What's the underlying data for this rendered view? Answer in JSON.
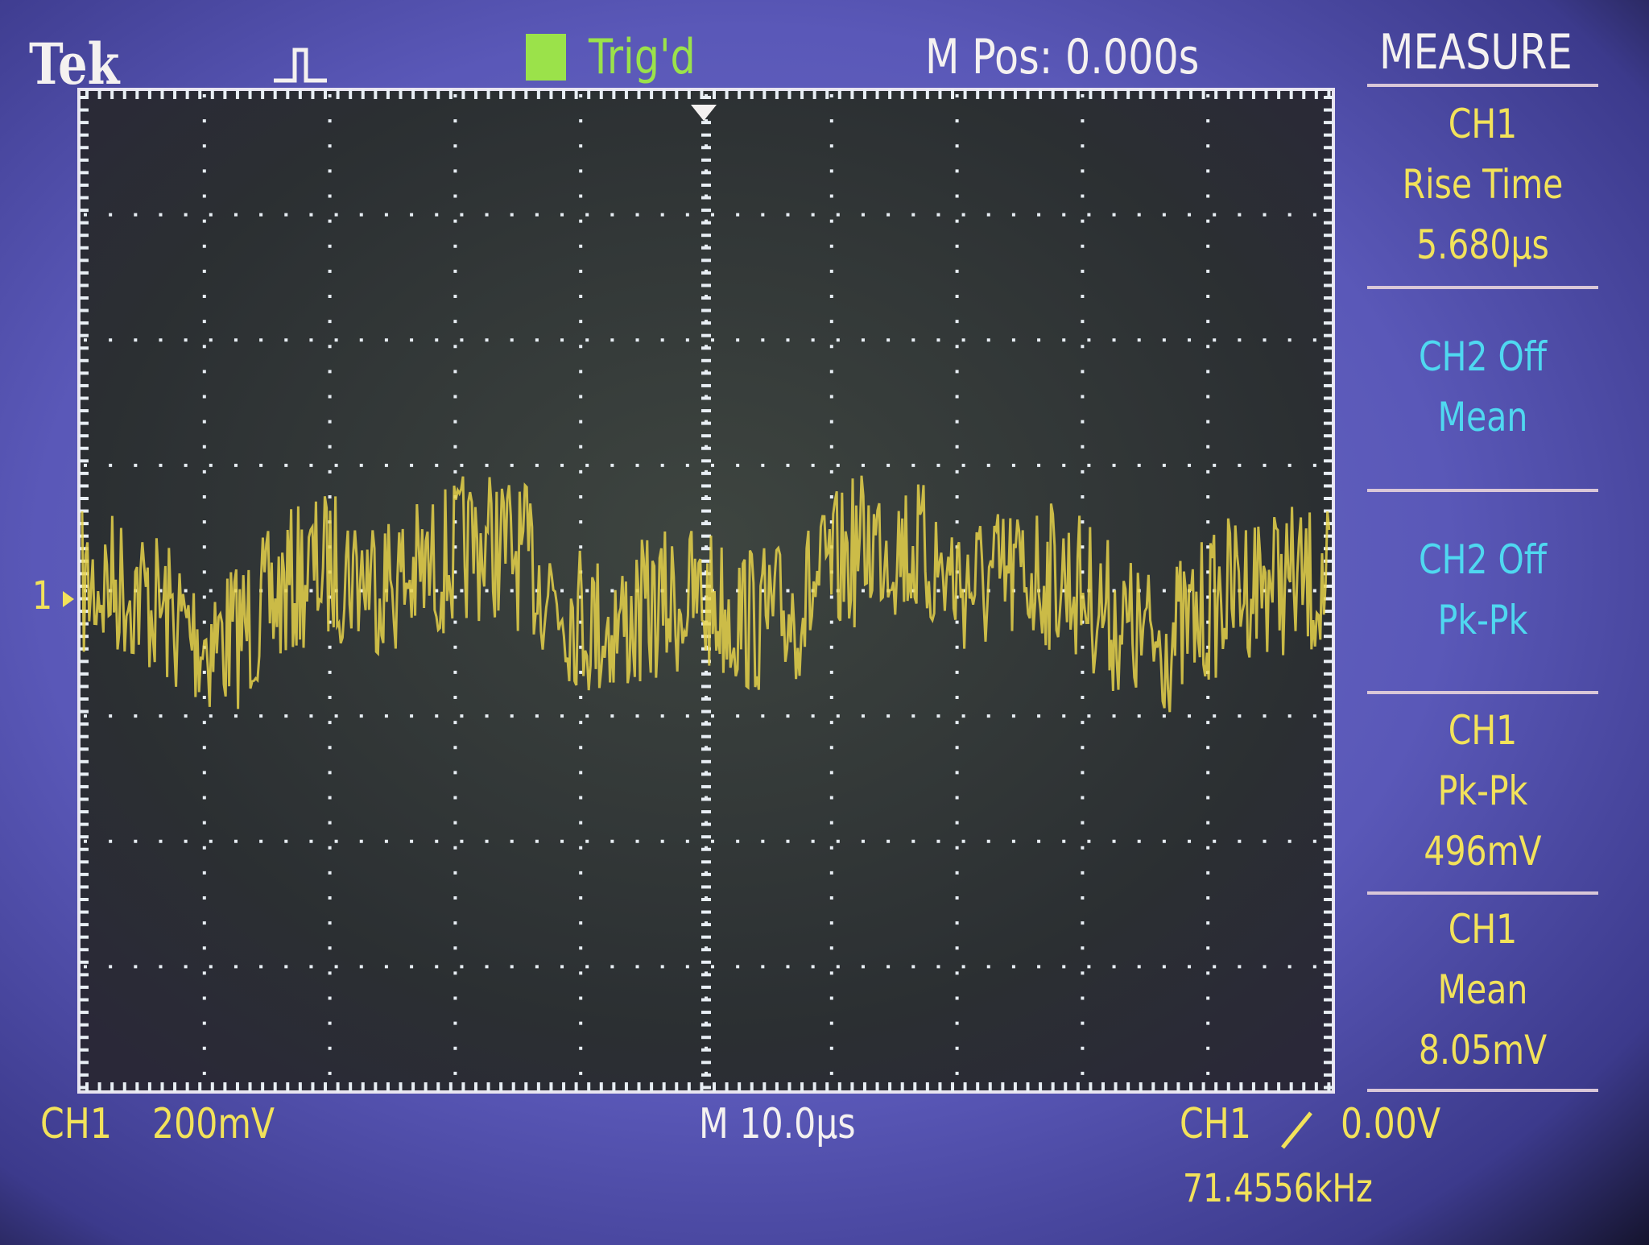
{
  "header": {
    "brand": "Tek",
    "trigger_status": "Trig'd",
    "position": "M Pos: 0.000s",
    "menu_title": "MEASURE"
  },
  "channel_marker": "1",
  "measurements": [
    {
      "lines": [
        "CH1",
        "Rise Time",
        "5.680µs"
      ],
      "color": "#f2e25a"
    },
    {
      "lines": [
        "CH2 Off",
        "Mean"
      ],
      "color": "#4fd8f0"
    },
    {
      "lines": [
        "CH2 Off",
        "Pk-Pk"
      ],
      "color": "#4fd8f0"
    },
    {
      "lines": [
        "CH1",
        "Pk-Pk",
        "496mV"
      ],
      "color": "#f2e25a"
    },
    {
      "lines": [
        "CH1",
        "Mean",
        "8.05mV"
      ],
      "color": "#f2e25a"
    }
  ],
  "footer": {
    "channel": "CH1",
    "volts_per_div": "200mV",
    "timebase": "M 10.0µs",
    "trigger_source": "CH1",
    "trigger_level": "0.00V",
    "frequency": "71.4556kHz"
  }
}
